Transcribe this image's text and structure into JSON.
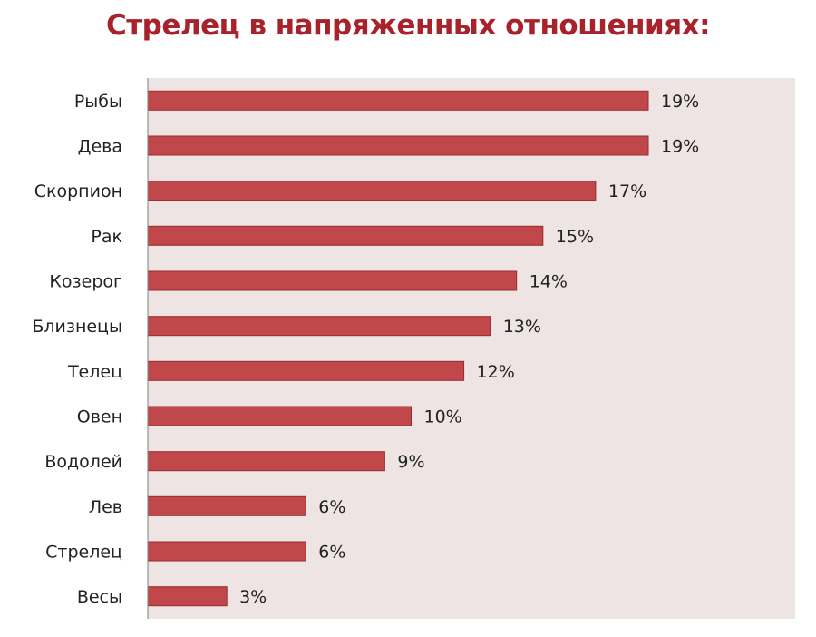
{
  "chart_data": {
    "type": "bar",
    "orientation": "horizontal",
    "title": "Стрелец в напряженных отношениях:",
    "categories": [
      "Рыбы",
      "Дева",
      "Скорпион",
      "Рак",
      "Козерог",
      "Близнецы",
      "Телец",
      "Овен",
      "Водолей",
      "Лев",
      "Стрелец",
      "Весы"
    ],
    "values": [
      19,
      19,
      17,
      15,
      14,
      13,
      12,
      10,
      9,
      6,
      6,
      3
    ],
    "labels": [
      "19%",
      "19%",
      "17%",
      "15%",
      "14%",
      "13%",
      "12%",
      "10%",
      "9%",
      "6%",
      "6%",
      "3%"
    ],
    "unit": "%",
    "xlim": [
      0,
      25
    ],
    "grid": false,
    "legend": "none",
    "colors": {
      "bar_fill": "#c0474a",
      "bar_stroke": "#9c2a2e",
      "plot_background": "#ede4e3",
      "title": "#a8222b",
      "axis": "#7f7f7f"
    }
  }
}
